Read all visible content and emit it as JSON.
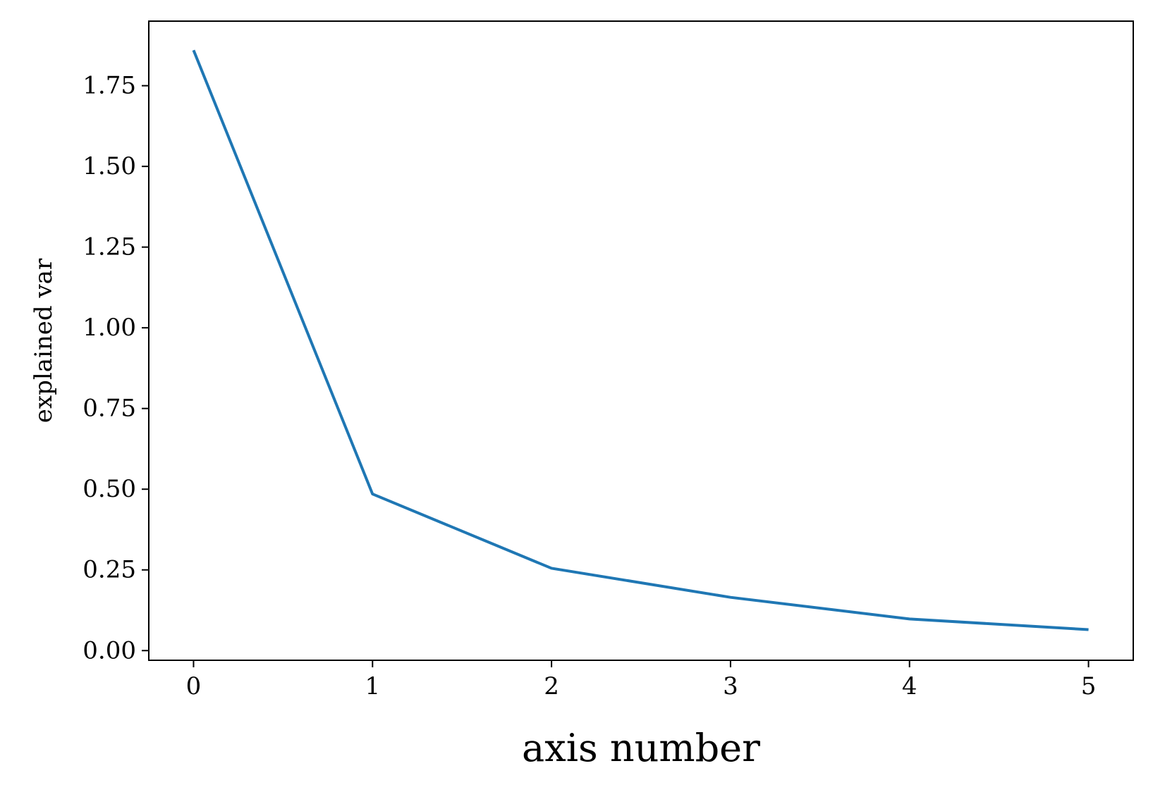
{
  "chart_data": {
    "type": "line",
    "title": "",
    "xlabel": "axis number",
    "ylabel": "explained var",
    "x": [
      0,
      1,
      2,
      3,
      4,
      5
    ],
    "series": [
      {
        "values": [
          1.86,
          0.485,
          0.255,
          0.165,
          0.098,
          0.065
        ],
        "color": "#1f77b4"
      }
    ],
    "xlim": [
      -0.25,
      5.25
    ],
    "ylim": [
      -0.03,
      1.95
    ],
    "xticks": [
      0,
      1,
      2,
      3,
      4,
      5
    ],
    "xtick_labels": [
      "0",
      "1",
      "2",
      "3",
      "4",
      "5"
    ],
    "yticks": [
      0.0,
      0.25,
      0.5,
      0.75,
      1.0,
      1.25,
      1.5,
      1.75
    ],
    "ytick_labels": [
      "0.00",
      "0.25",
      "0.50",
      "0.75",
      "1.00",
      "1.25",
      "1.50",
      "1.75"
    ],
    "grid": false,
    "legend": "none"
  }
}
